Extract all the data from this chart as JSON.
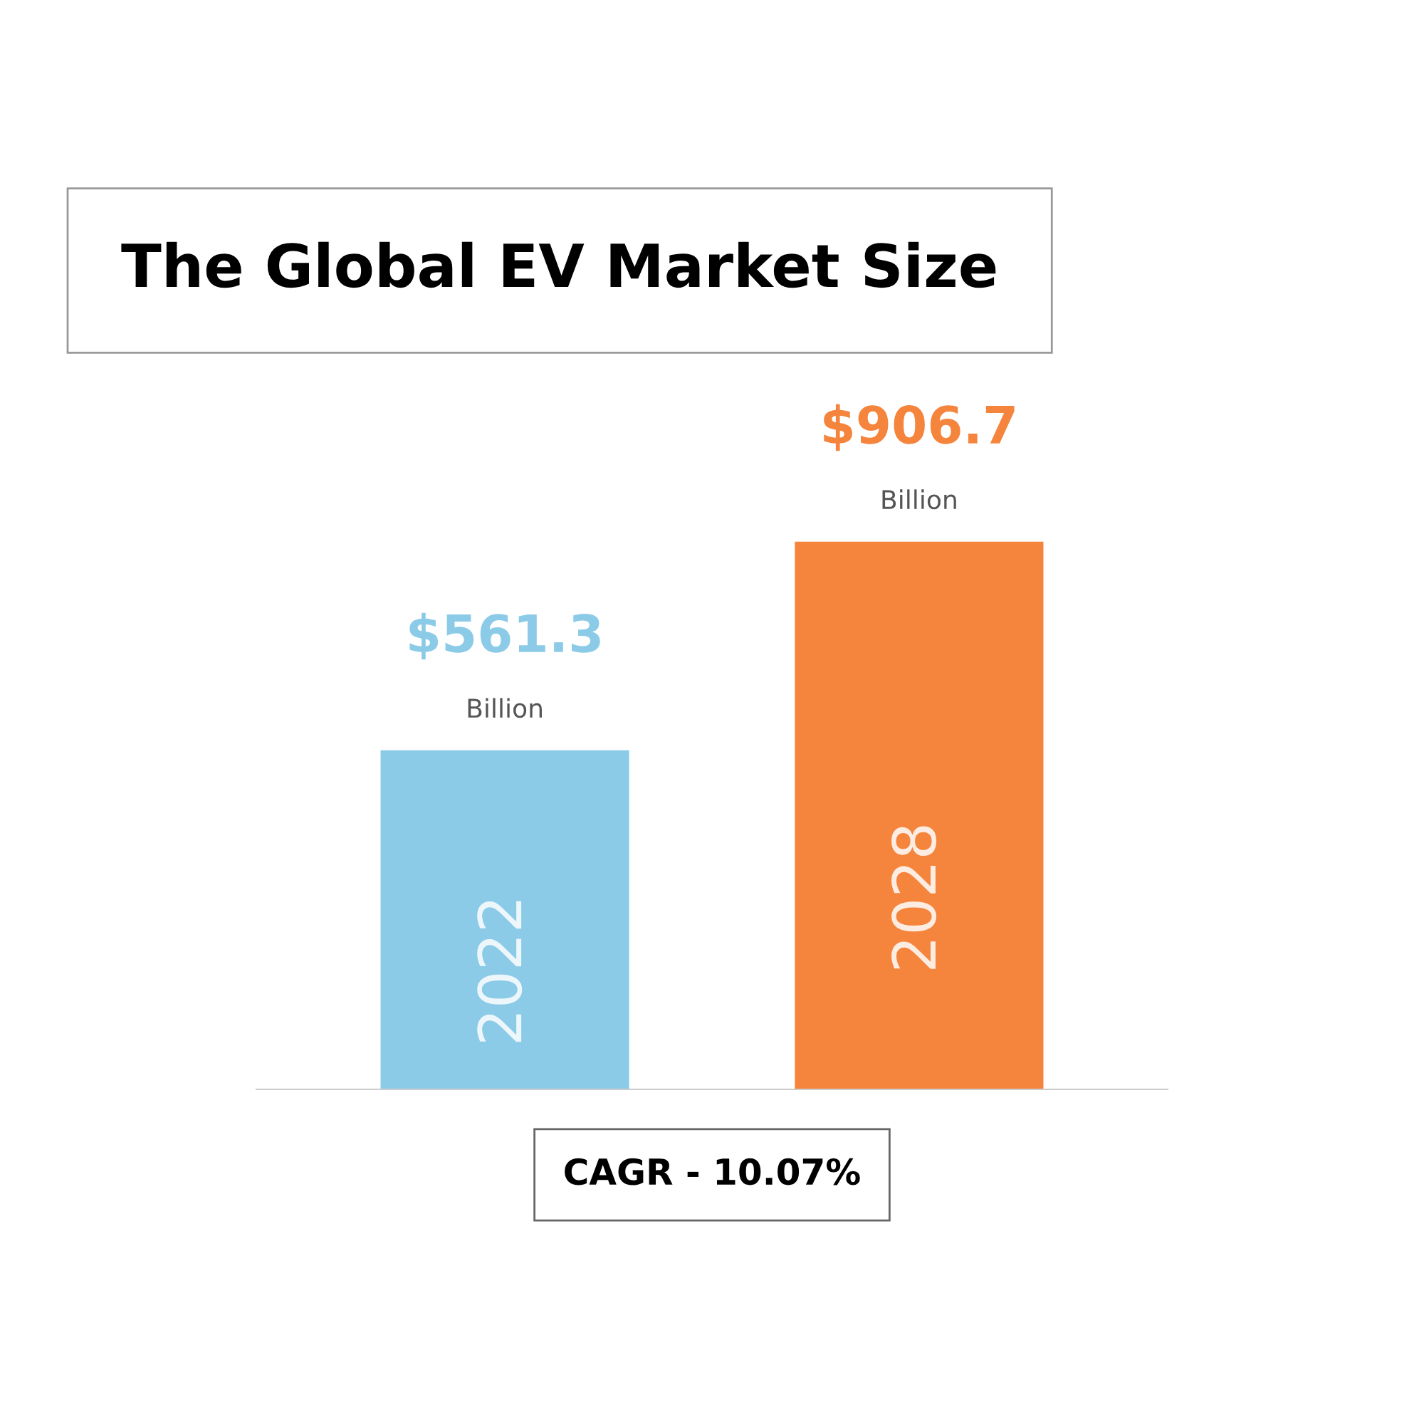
{
  "chart_data": {
    "type": "bar",
    "title": "The Global EV Market Size",
    "categories": [
      "2022",
      "2028"
    ],
    "values": [
      561.3,
      906.7
    ],
    "colors": [
      "#8ccbe8",
      "#f5843c"
    ],
    "value_labels": [
      "$561.3\nBillion",
      "$906.7\nBillion"
    ],
    "annotations": [
      "CAGR - 10.07%"
    ],
    "tick_labels": false,
    "legend": false
  }
}
